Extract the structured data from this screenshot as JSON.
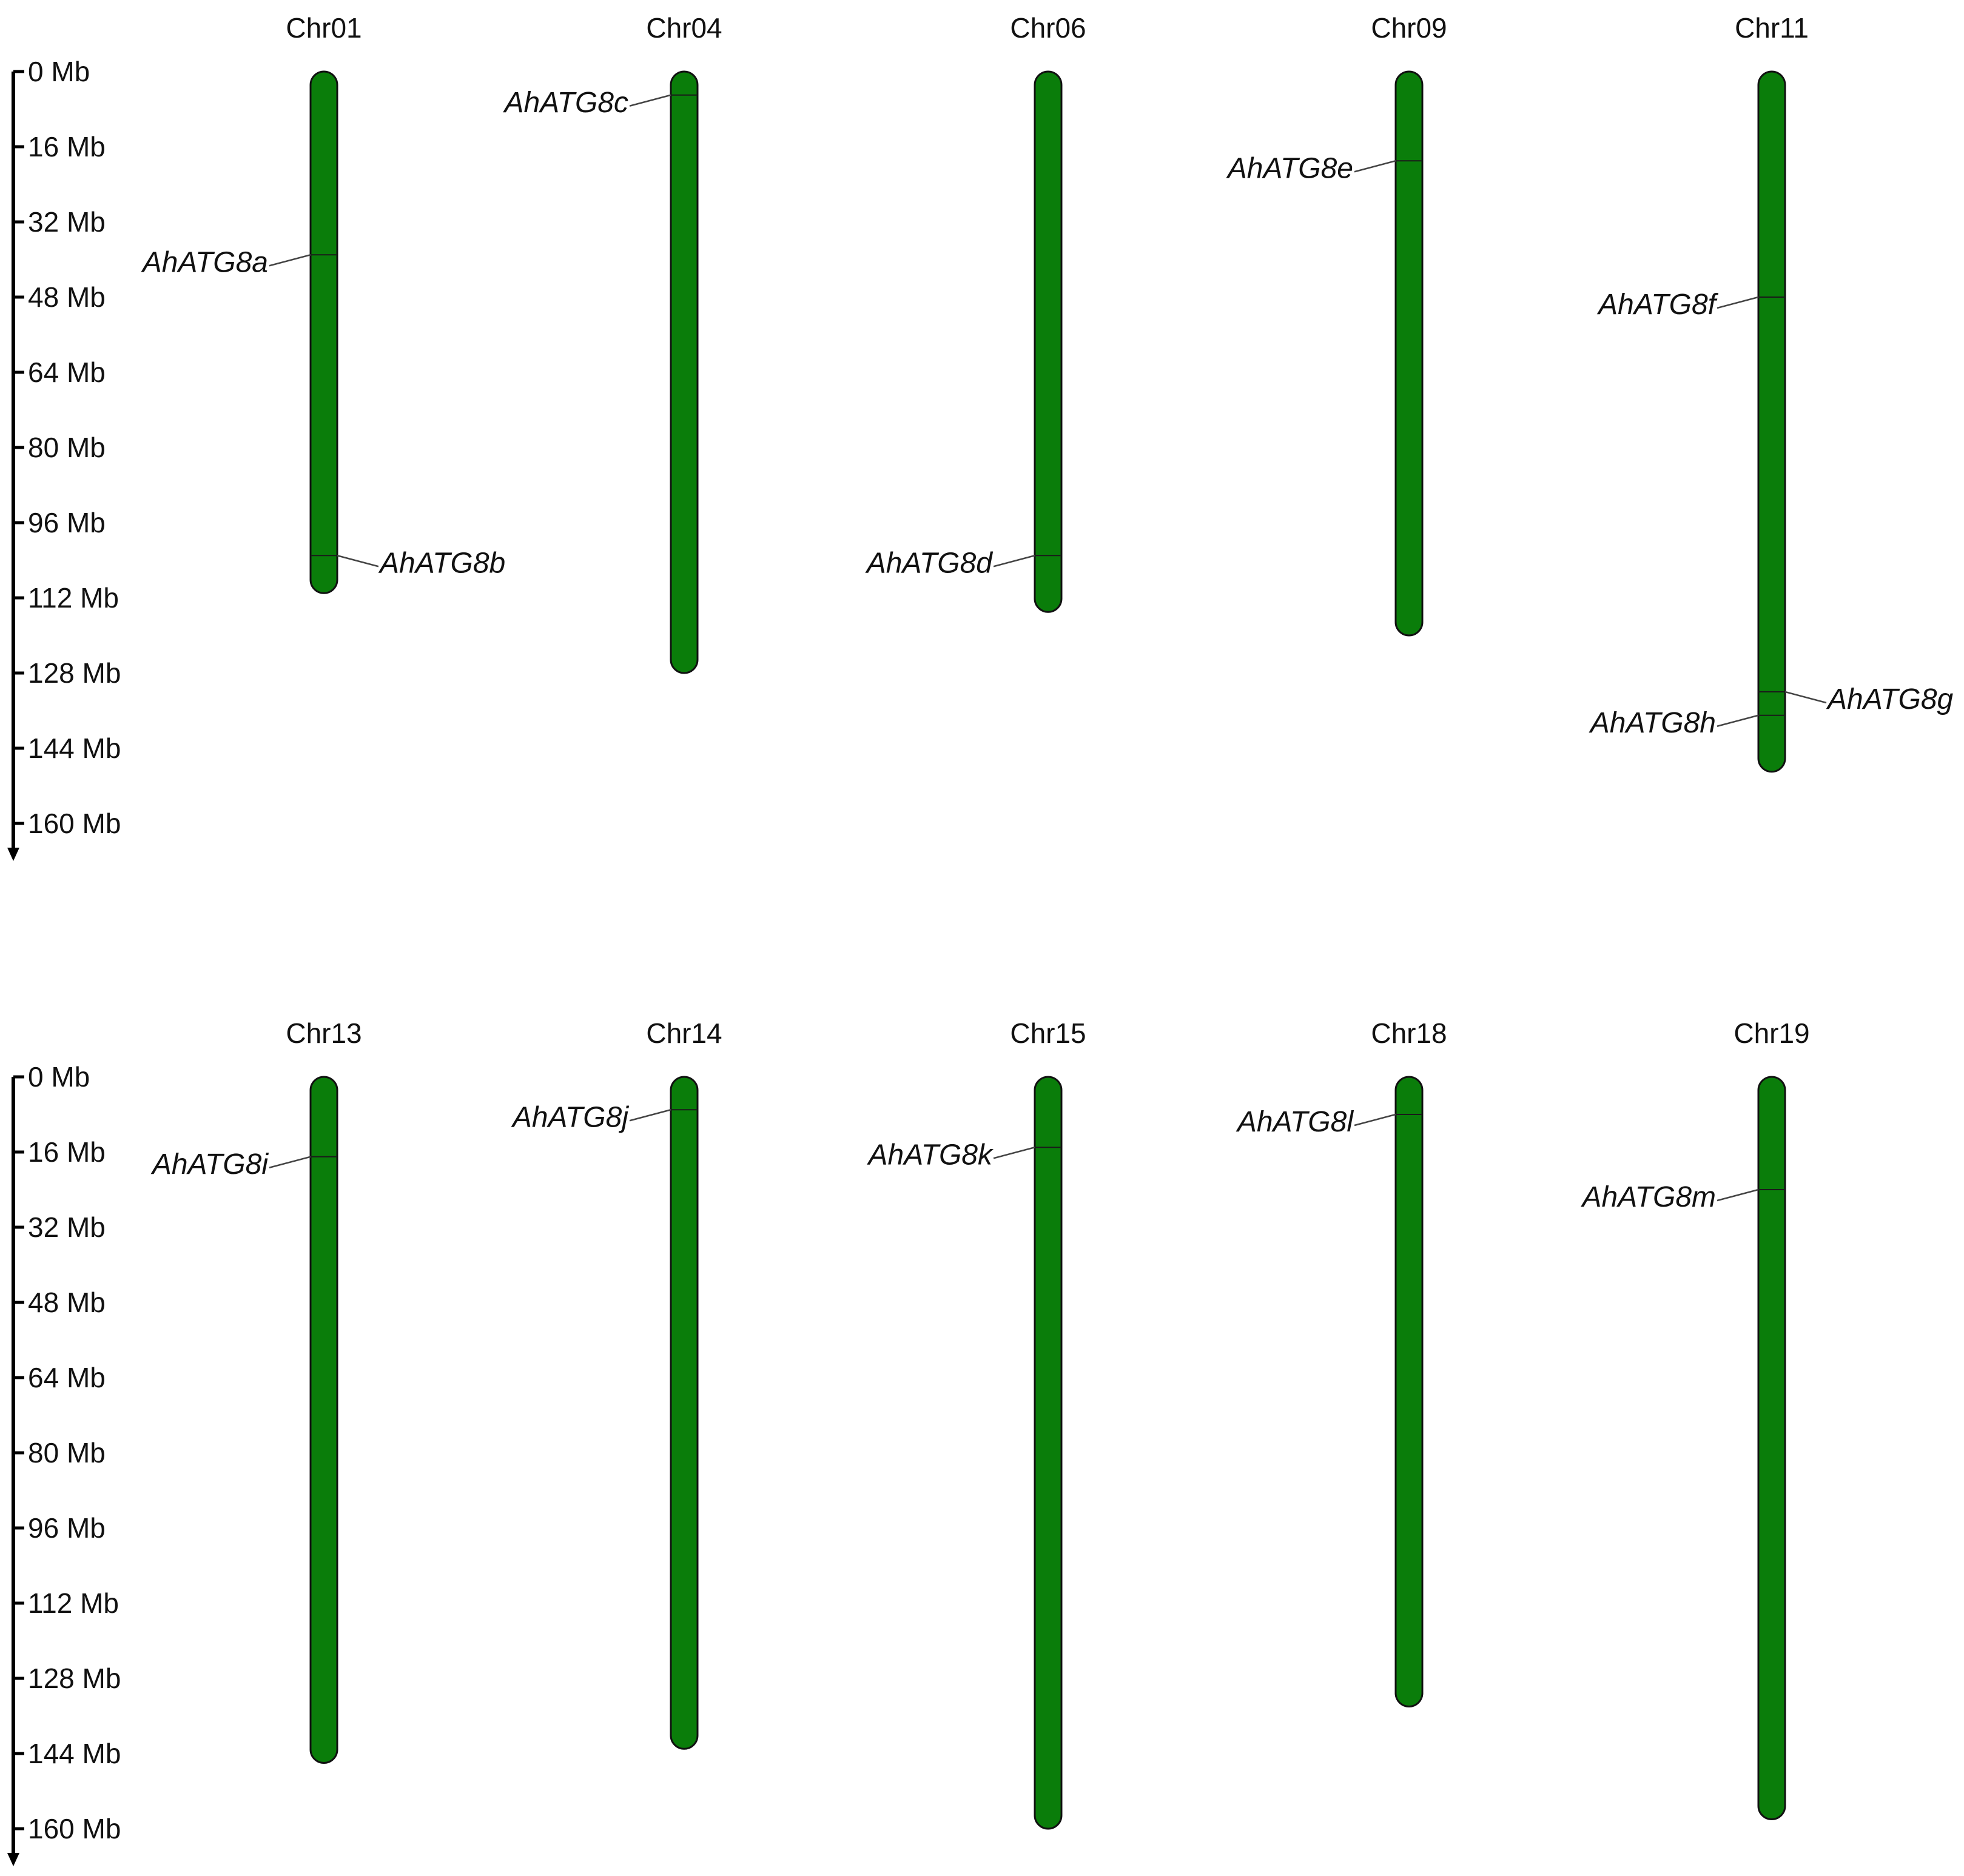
{
  "axis": {
    "ticks": [
      "0 Mb",
      "16 Mb",
      "32 Mb",
      "48 Mb",
      "64 Mb",
      "80 Mb",
      "96 Mb",
      "112 Mb",
      "128 Mb",
      "144 Mb",
      "160 Mb"
    ],
    "tick_values": [
      0,
      16,
      32,
      48,
      64,
      80,
      96,
      112,
      128,
      144,
      160
    ]
  },
  "colors": {
    "chromosome": "#0a7d0a"
  },
  "rows": [
    {
      "chromosomes": [
        {
          "name": "Chr01",
          "length": 111,
          "genes": [
            {
              "name": "AhATG8a",
              "pos": 39,
              "side": "left"
            },
            {
              "name": "AhATG8b",
              "pos": 103,
              "side": "right"
            }
          ]
        },
        {
          "name": "Chr04",
          "length": 128,
          "genes": [
            {
              "name": "AhATG8c",
              "pos": 5,
              "side": "left"
            }
          ]
        },
        {
          "name": "Chr06",
          "length": 115,
          "genes": [
            {
              "name": "AhATG8d",
              "pos": 103,
              "side": "left"
            }
          ]
        },
        {
          "name": "Chr09",
          "length": 120,
          "genes": [
            {
              "name": "AhATG8e",
              "pos": 19,
              "side": "left"
            }
          ]
        },
        {
          "name": "Chr11",
          "length": 149,
          "genes": [
            {
              "name": "AhATG8f",
              "pos": 48,
              "side": "left"
            },
            {
              "name": "AhATG8g",
              "pos": 132,
              "side": "right"
            },
            {
              "name": "AhATG8h",
              "pos": 137,
              "side": "left"
            }
          ]
        }
      ]
    },
    {
      "chromosomes": [
        {
          "name": "Chr13",
          "length": 146,
          "genes": [
            {
              "name": "AhATG8i",
              "pos": 17,
              "side": "left"
            }
          ]
        },
        {
          "name": "Chr14",
          "length": 143,
          "genes": [
            {
              "name": "AhATG8j",
              "pos": 7,
              "side": "left"
            }
          ]
        },
        {
          "name": "Chr15",
          "length": 160,
          "genes": [
            {
              "name": "AhATG8k",
              "pos": 15,
              "side": "left"
            }
          ]
        },
        {
          "name": "Chr18",
          "length": 134,
          "genes": [
            {
              "name": "AhATG8l",
              "pos": 8,
              "side": "left"
            }
          ]
        },
        {
          "name": "Chr19",
          "length": 158,
          "genes": [
            {
              "name": "AhATG8m",
              "pos": 24,
              "side": "left"
            }
          ]
        }
      ]
    }
  ]
}
